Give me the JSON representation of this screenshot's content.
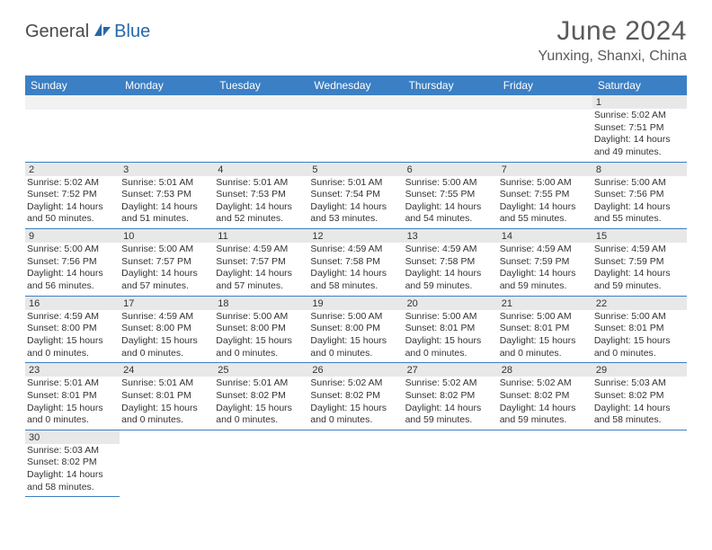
{
  "logo": {
    "part1": "General",
    "part2": "Blue"
  },
  "title": "June 2024",
  "location": "Yunxing, Shanxi, China",
  "dayHeaders": [
    "Sunday",
    "Monday",
    "Tuesday",
    "Wednesday",
    "Thursday",
    "Friday",
    "Saturday"
  ],
  "colors": {
    "headerBg": "#3b7fc4",
    "headerText": "#ffffff",
    "dayNumBg": "#e8e8e8",
    "borderColor": "#3b7fc4",
    "logoGray": "#4a4a4a",
    "logoBlue": "#2768a8",
    "titleColor": "#5a5a5a"
  },
  "weeks": [
    [
      null,
      null,
      null,
      null,
      null,
      null,
      {
        "n": "1",
        "sr": "5:02 AM",
        "ss": "7:51 PM",
        "dl": "14 hours and 49 minutes."
      }
    ],
    [
      {
        "n": "2",
        "sr": "5:02 AM",
        "ss": "7:52 PM",
        "dl": "14 hours and 50 minutes."
      },
      {
        "n": "3",
        "sr": "5:01 AM",
        "ss": "7:53 PM",
        "dl": "14 hours and 51 minutes."
      },
      {
        "n": "4",
        "sr": "5:01 AM",
        "ss": "7:53 PM",
        "dl": "14 hours and 52 minutes."
      },
      {
        "n": "5",
        "sr": "5:01 AM",
        "ss": "7:54 PM",
        "dl": "14 hours and 53 minutes."
      },
      {
        "n": "6",
        "sr": "5:00 AM",
        "ss": "7:55 PM",
        "dl": "14 hours and 54 minutes."
      },
      {
        "n": "7",
        "sr": "5:00 AM",
        "ss": "7:55 PM",
        "dl": "14 hours and 55 minutes."
      },
      {
        "n": "8",
        "sr": "5:00 AM",
        "ss": "7:56 PM",
        "dl": "14 hours and 55 minutes."
      }
    ],
    [
      {
        "n": "9",
        "sr": "5:00 AM",
        "ss": "7:56 PM",
        "dl": "14 hours and 56 minutes."
      },
      {
        "n": "10",
        "sr": "5:00 AM",
        "ss": "7:57 PM",
        "dl": "14 hours and 57 minutes."
      },
      {
        "n": "11",
        "sr": "4:59 AM",
        "ss": "7:57 PM",
        "dl": "14 hours and 57 minutes."
      },
      {
        "n": "12",
        "sr": "4:59 AM",
        "ss": "7:58 PM",
        "dl": "14 hours and 58 minutes."
      },
      {
        "n": "13",
        "sr": "4:59 AM",
        "ss": "7:58 PM",
        "dl": "14 hours and 59 minutes."
      },
      {
        "n": "14",
        "sr": "4:59 AM",
        "ss": "7:59 PM",
        "dl": "14 hours and 59 minutes."
      },
      {
        "n": "15",
        "sr": "4:59 AM",
        "ss": "7:59 PM",
        "dl": "14 hours and 59 minutes."
      }
    ],
    [
      {
        "n": "16",
        "sr": "4:59 AM",
        "ss": "8:00 PM",
        "dl": "15 hours and 0 minutes."
      },
      {
        "n": "17",
        "sr": "4:59 AM",
        "ss": "8:00 PM",
        "dl": "15 hours and 0 minutes."
      },
      {
        "n": "18",
        "sr": "5:00 AM",
        "ss": "8:00 PM",
        "dl": "15 hours and 0 minutes."
      },
      {
        "n": "19",
        "sr": "5:00 AM",
        "ss": "8:00 PM",
        "dl": "15 hours and 0 minutes."
      },
      {
        "n": "20",
        "sr": "5:00 AM",
        "ss": "8:01 PM",
        "dl": "15 hours and 0 minutes."
      },
      {
        "n": "21",
        "sr": "5:00 AM",
        "ss": "8:01 PM",
        "dl": "15 hours and 0 minutes."
      },
      {
        "n": "22",
        "sr": "5:00 AM",
        "ss": "8:01 PM",
        "dl": "15 hours and 0 minutes."
      }
    ],
    [
      {
        "n": "23",
        "sr": "5:01 AM",
        "ss": "8:01 PM",
        "dl": "15 hours and 0 minutes."
      },
      {
        "n": "24",
        "sr": "5:01 AM",
        "ss": "8:01 PM",
        "dl": "15 hours and 0 minutes."
      },
      {
        "n": "25",
        "sr": "5:01 AM",
        "ss": "8:02 PM",
        "dl": "15 hours and 0 minutes."
      },
      {
        "n": "26",
        "sr": "5:02 AM",
        "ss": "8:02 PM",
        "dl": "15 hours and 0 minutes."
      },
      {
        "n": "27",
        "sr": "5:02 AM",
        "ss": "8:02 PM",
        "dl": "14 hours and 59 minutes."
      },
      {
        "n": "28",
        "sr": "5:02 AM",
        "ss": "8:02 PM",
        "dl": "14 hours and 59 minutes."
      },
      {
        "n": "29",
        "sr": "5:03 AM",
        "ss": "8:02 PM",
        "dl": "14 hours and 58 minutes."
      }
    ],
    [
      {
        "n": "30",
        "sr": "5:03 AM",
        "ss": "8:02 PM",
        "dl": "14 hours and 58 minutes."
      },
      null,
      null,
      null,
      null,
      null,
      null
    ]
  ],
  "labels": {
    "sunrise": "Sunrise: ",
    "sunset": "Sunset: ",
    "daylight": "Daylight: "
  }
}
